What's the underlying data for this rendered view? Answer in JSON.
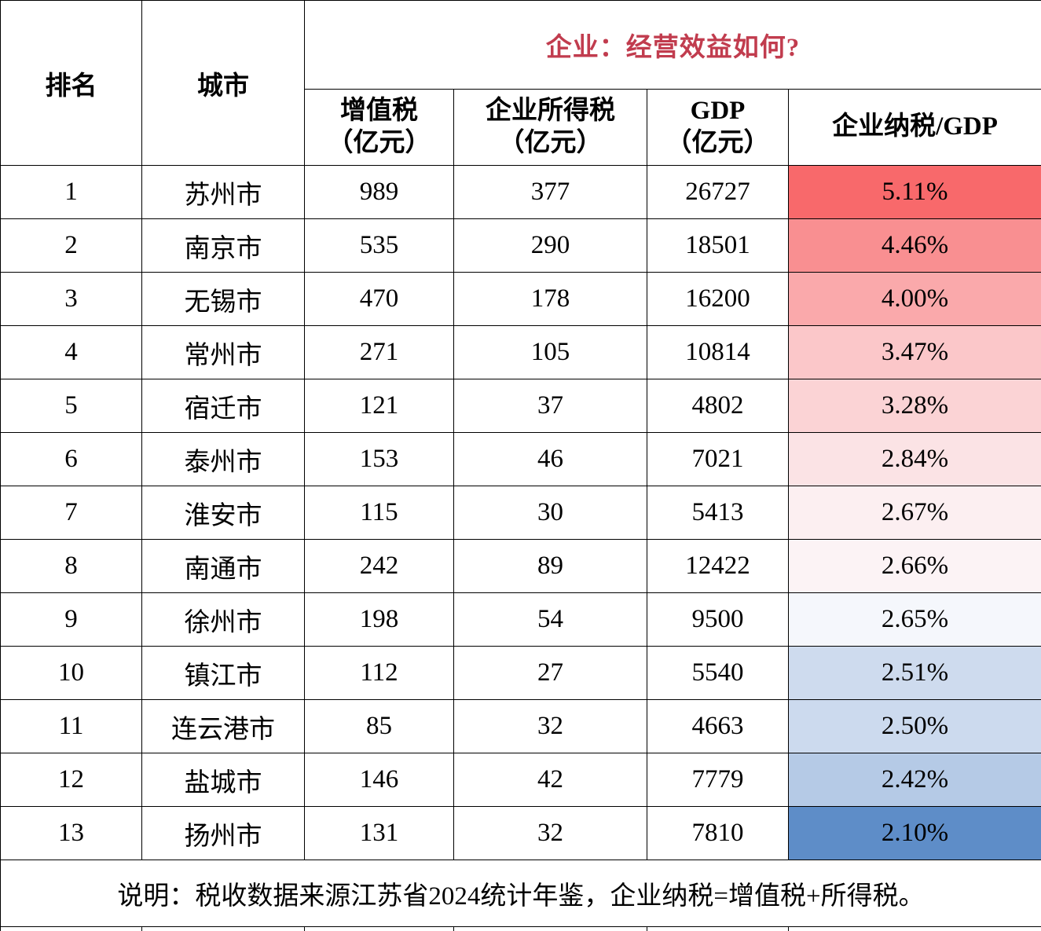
{
  "title": {
    "text": "企业：经营效益如何?",
    "color": "#C13C4E"
  },
  "table": {
    "headers": {
      "rank": "排名",
      "city": "城市",
      "vat_line1": "增值税",
      "vat_line2": "（亿元）",
      "cit_line1": "企业所得税",
      "cit_line2": "（亿元）",
      "gdp_line1": "GDP",
      "gdp_line2": "（亿元）",
      "ratio": "企业纳税/GDP"
    },
    "rows": [
      {
        "rank": "1",
        "city": "苏州市",
        "vat": "989",
        "cit": "377",
        "gdp": "26727",
        "ratio": "5.11%",
        "ratio_bg": "#F8696B"
      },
      {
        "rank": "2",
        "city": "南京市",
        "vat": "535",
        "cit": "290",
        "gdp": "18501",
        "ratio": "4.46%",
        "ratio_bg": "#F98F91"
      },
      {
        "rank": "3",
        "city": "无锡市",
        "vat": "470",
        "cit": "178",
        "gdp": "16200",
        "ratio": "4.00%",
        "ratio_bg": "#FAA9AB"
      },
      {
        "rank": "4",
        "city": "常州市",
        "vat": "271",
        "cit": "105",
        "gdp": "10814",
        "ratio": "3.47%",
        "ratio_bg": "#FBC7C9"
      },
      {
        "rank": "5",
        "city": "宿迁市",
        "vat": "121",
        "cit": "37",
        "gdp": "4802",
        "ratio": "3.28%",
        "ratio_bg": "#FBD3D5"
      },
      {
        "rank": "6",
        "city": "泰州市",
        "vat": "153",
        "cit": "46",
        "gdp": "7021",
        "ratio": "2.84%",
        "ratio_bg": "#FBE3E5"
      },
      {
        "rank": "7",
        "city": "淮安市",
        "vat": "115",
        "cit": "30",
        "gdp": "5413",
        "ratio": "2.67%",
        "ratio_bg": "#FCEFF1"
      },
      {
        "rank": "8",
        "city": "南通市",
        "vat": "242",
        "cit": "89",
        "gdp": "12422",
        "ratio": "2.66%",
        "ratio_bg": "#FCF3F5"
      },
      {
        "rank": "9",
        "city": "徐州市",
        "vat": "198",
        "cit": "54",
        "gdp": "9500",
        "ratio": "2.65%",
        "ratio_bg": "#F5F7FC"
      },
      {
        "rank": "10",
        "city": "镇江市",
        "vat": "112",
        "cit": "27",
        "gdp": "5540",
        "ratio": "2.51%",
        "ratio_bg": "#CEDBEE"
      },
      {
        "rank": "11",
        "city": "连云港市",
        "vat": "85",
        "cit": "32",
        "gdp": "4663",
        "ratio": "2.50%",
        "ratio_bg": "#CCDAEE"
      },
      {
        "rank": "12",
        "city": "盐城市",
        "vat": "146",
        "cit": "42",
        "gdp": "7779",
        "ratio": "2.42%",
        "ratio_bg": "#B5CAE6"
      },
      {
        "rank": "13",
        "city": "扬州市",
        "vat": "131",
        "cit": "32",
        "gdp": "7810",
        "ratio": "2.10%",
        "ratio_bg": "#5E8DC8"
      }
    ]
  },
  "footer": {
    "note": "说明：税收数据来源江苏省2024统计年鉴，企业纳税=增值税+所得税。"
  },
  "chart_data": {
    "type": "table",
    "title": "企业：经营效益如何?",
    "columns": [
      "排名",
      "城市",
      "增值税（亿元）",
      "企业所得税（亿元）",
      "GDP（亿元）",
      "企业纳税/GDP"
    ],
    "categories": [
      "苏州市",
      "南京市",
      "无锡市",
      "常州市",
      "宿迁市",
      "泰州市",
      "淮安市",
      "南通市",
      "徐州市",
      "镇江市",
      "连云港市",
      "盐城市",
      "扬州市"
    ],
    "series": [
      {
        "name": "增值税（亿元）",
        "values": [
          989,
          535,
          470,
          271,
          121,
          153,
          115,
          242,
          198,
          112,
          85,
          146,
          131
        ]
      },
      {
        "name": "企业所得税（亿元）",
        "values": [
          377,
          290,
          178,
          105,
          37,
          46,
          30,
          89,
          54,
          27,
          32,
          42,
          32
        ]
      },
      {
        "name": "GDP（亿元）",
        "values": [
          26727,
          18501,
          16200,
          10814,
          4802,
          7021,
          5413,
          12422,
          9500,
          5540,
          4663,
          7779,
          7810
        ]
      },
      {
        "name": "企业纳税/GDP(%)",
        "values": [
          5.11,
          4.46,
          4.0,
          3.47,
          3.28,
          2.84,
          2.67,
          2.66,
          2.65,
          2.51,
          2.5,
          2.42,
          2.1
        ]
      }
    ],
    "notes": "说明：税收数据来源江苏省2024统计年鉴，企业纳税=增值税+所得税。",
    "layout_hints": "last column uses red-white-blue conditional color scale, high=red #F8696B, low=blue #5A8AC6"
  }
}
